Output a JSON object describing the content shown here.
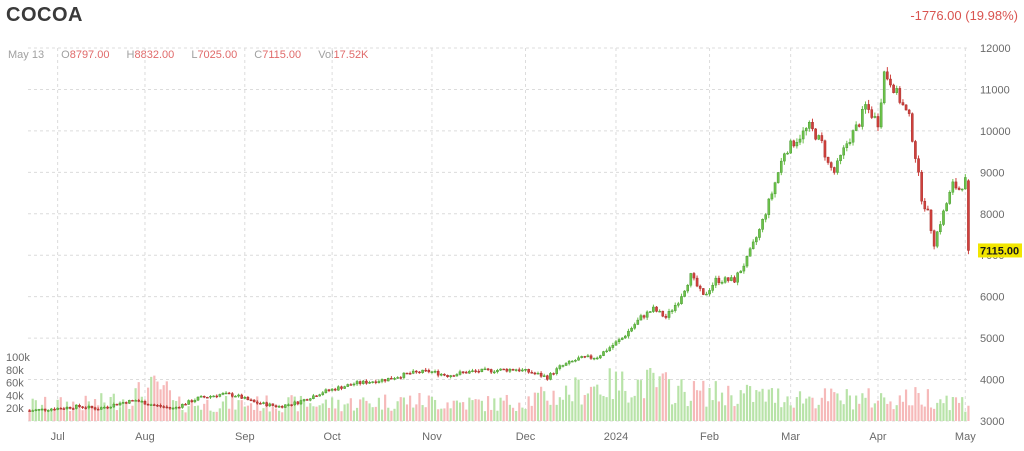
{
  "header": {
    "symbol": "COCOA",
    "change": "-1776.00 (19.98%)"
  },
  "ohlc_bar": {
    "date": "May 13",
    "open_label": "O",
    "open": "8797.00",
    "high_label": "H",
    "high": "8832.00",
    "low_label": "L",
    "low": "7025.00",
    "close_label": "C",
    "close": "7115.00",
    "vol_label": "Vol",
    "vol": "17.52K"
  },
  "price_tag": "7115.00",
  "colors": {
    "up": "#6cc24a",
    "down": "#d0403c",
    "vol_up": "#b8e3a8",
    "vol_down": "#f6b9b9",
    "grid": "#dcdcdc",
    "price_tag_bg": "#f2e600"
  },
  "chart_data": {
    "type": "candlestick",
    "y_axis": {
      "side": "right",
      "ticks": [
        3000,
        4000,
        5000,
        6000,
        7000,
        8000,
        9000,
        10000,
        11000,
        12000
      ],
      "range": [
        3000,
        12000
      ]
    },
    "volume_axis": {
      "ticks": [
        "20k",
        "40k",
        "60k",
        "80k",
        "100k"
      ]
    },
    "x_ticks": [
      "Jul",
      "Aug",
      "Sep",
      "Oct",
      "Nov",
      "Dec",
      "2024",
      "Feb",
      "Mar",
      "Apr",
      "May"
    ],
    "grid": true,
    "anchors": [
      [
        0,
        3250
      ],
      [
        8,
        3300
      ],
      [
        16,
        3350
      ],
      [
        22,
        3300
      ],
      [
        30,
        3450
      ],
      [
        34,
        3500
      ],
      [
        40,
        3380
      ],
      [
        46,
        3300
      ],
      [
        54,
        3550
      ],
      [
        62,
        3650
      ],
      [
        66,
        3620
      ],
      [
        72,
        3450
      ],
      [
        80,
        3350
      ],
      [
        86,
        3450
      ],
      [
        94,
        3700
      ],
      [
        104,
        3900
      ],
      [
        114,
        4000
      ],
      [
        122,
        4150
      ],
      [
        128,
        4200
      ],
      [
        134,
        4100
      ],
      [
        140,
        4180
      ],
      [
        148,
        4220
      ],
      [
        156,
        4250
      ],
      [
        162,
        4150
      ],
      [
        166,
        4050
      ],
      [
        170,
        4300
      ],
      [
        176,
        4500
      ],
      [
        182,
        4550
      ],
      [
        190,
        5000
      ],
      [
        196,
        5500
      ],
      [
        200,
        5700
      ],
      [
        204,
        5500
      ],
      [
        208,
        5900
      ],
      [
        212,
        6500
      ],
      [
        216,
        6000
      ],
      [
        220,
        6400
      ],
      [
        226,
        6400
      ],
      [
        230,
        6900
      ],
      [
        234,
        7600
      ],
      [
        238,
        8500
      ],
      [
        242,
        9500
      ],
      [
        246,
        9800
      ],
      [
        250,
        10100
      ],
      [
        254,
        9700
      ],
      [
        256,
        9200
      ],
      [
        258,
        9000
      ],
      [
        262,
        9700
      ],
      [
        266,
        10200
      ],
      [
        268,
        10600
      ],
      [
        272,
        10200
      ],
      [
        274,
        11400
      ],
      [
        276,
        11200
      ],
      [
        278,
        10900
      ],
      [
        282,
        10300
      ],
      [
        284,
        9400
      ],
      [
        286,
        8400
      ],
      [
        288,
        8000
      ],
      [
        290,
        7300
      ],
      [
        292,
        7800
      ],
      [
        296,
        8700
      ],
      [
        298,
        8600
      ],
      [
        300,
        8800
      ],
      [
        301,
        7115
      ]
    ],
    "volume_anchors": [
      [
        0,
        28
      ],
      [
        20,
        30
      ],
      [
        30,
        38
      ],
      [
        42,
        60
      ],
      [
        44,
        28
      ],
      [
        60,
        30
      ],
      [
        100,
        30
      ],
      [
        120,
        35
      ],
      [
        150,
        30
      ],
      [
        170,
        45
      ],
      [
        180,
        60
      ],
      [
        200,
        65
      ],
      [
        210,
        50
      ],
      [
        230,
        45
      ],
      [
        250,
        40
      ],
      [
        275,
        38
      ],
      [
        290,
        42
      ],
      [
        301,
        30
      ]
    ]
  }
}
